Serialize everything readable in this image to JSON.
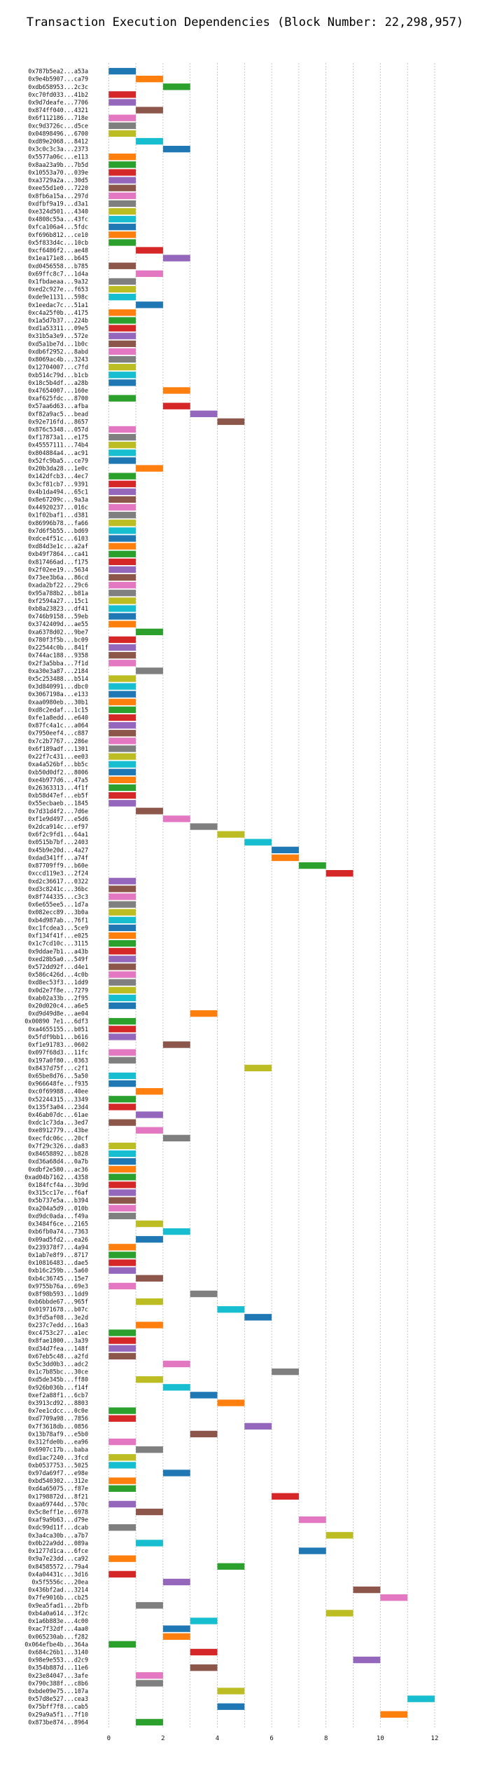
{
  "chart_data": {
    "type": "bar",
    "orientation": "horizontal",
    "title": "Transaction Execution Dependencies (Block Number: 22,298,957)",
    "xlabel": "",
    "ylabel": "",
    "xlim": [
      -0.6,
      12.8
    ],
    "xticks": [
      0,
      2,
      4,
      6,
      8,
      10,
      12
    ],
    "grid": true,
    "palette": [
      "#1f77b4",
      "#ff7f0e",
      "#2ca02c",
      "#d62728",
      "#9467bd",
      "#8c564b",
      "#e377c2",
      "#7f7f7f",
      "#bcbd22",
      "#17becf"
    ],
    "bar_width": 1,
    "transactions": [
      {
        "label": "0x787b5ea2...a53a",
        "start": 0
      },
      {
        "label": "0x9e4b5907...ca79",
        "start": 1
      },
      {
        "label": "0xdb658953...2c3c",
        "start": 2
      },
      {
        "label": "0xc70fd033...41b2",
        "start": 0
      },
      {
        "label": "0x9d7deafe...7706",
        "start": 0
      },
      {
        "label": "0x874ff040...4321",
        "start": 1
      },
      {
        "label": "0x6f112186...718e",
        "start": 0
      },
      {
        "label": "0xc9d3726c...d5ce",
        "start": 0
      },
      {
        "label": "0x04898496...6700",
        "start": 0
      },
      {
        "label": "0xd89e2068...8412",
        "start": 1
      },
      {
        "label": "0x3c0c3c3a...2373",
        "start": 2
      },
      {
        "label": "0x5577a06c...e113",
        "start": 0
      },
      {
        "label": "0x8aa23a9b...7b5d",
        "start": 0
      },
      {
        "label": "0x10553a70...039e",
        "start": 0
      },
      {
        "label": "0xa3729a2a...30d5",
        "start": 0
      },
      {
        "label": "0xee55d1e0...7220",
        "start": 0
      },
      {
        "label": "0x8fb6a15a...297d",
        "start": 0
      },
      {
        "label": "0xdfbf9a19...d3a1",
        "start": 0
      },
      {
        "label": "0xe324d501...4340",
        "start": 0
      },
      {
        "label": "0x4808c55a...43fc",
        "start": 0
      },
      {
        "label": "0xfca106a4...5fdc",
        "start": 0
      },
      {
        "label": "0xf696b812...ce10",
        "start": 0
      },
      {
        "label": "0x5f833d4c...10cb",
        "start": 0
      },
      {
        "label": "0xcf6486f2...ae48",
        "start": 1
      },
      {
        "label": "0x1ea171e8...b645",
        "start": 2
      },
      {
        "label": "0xd0456558...b785",
        "start": 0
      },
      {
        "label": "0x69ffc8c7...1d4a",
        "start": 1
      },
      {
        "label": "0x1fbdaeaa...9a32",
        "start": 0
      },
      {
        "label": "0xed2c927e...f653",
        "start": 0
      },
      {
        "label": "0xde9e1131...598c",
        "start": 0
      },
      {
        "label": "0x1eedac7c...51a1",
        "start": 1
      },
      {
        "label": "0xc4a25f0b...4175",
        "start": 0
      },
      {
        "label": "0x1a5d7b37...224b",
        "start": 0
      },
      {
        "label": "0xd1a53311...09e5",
        "start": 0
      },
      {
        "label": "0x31b5a3e9...572e",
        "start": 0
      },
      {
        "label": "0xd5a1be7d...1b0c",
        "start": 0
      },
      {
        "label": "0xdb6f2952...8abd",
        "start": 0
      },
      {
        "label": "0x8069ac4b...3243",
        "start": 0
      },
      {
        "label": "0x12704007...c7fd",
        "start": 0
      },
      {
        "label": "0xb514c79d...b1cb",
        "start": 0
      },
      {
        "label": "0x18c5b4df...a28b",
        "start": 0
      },
      {
        "label": "0x47654007...160e",
        "start": 2
      },
      {
        "label": "0xaf625fdc...8700",
        "start": 0
      },
      {
        "label": "0x57aa6d63...afba",
        "start": 2
      },
      {
        "label": "0xf82a9ac5...bead",
        "start": 3
      },
      {
        "label": "0x92e716fd...8657",
        "start": 4
      },
      {
        "label": "0x876c5348...057d",
        "start": 0
      },
      {
        "label": "0xf17873a1...e175",
        "start": 0
      },
      {
        "label": "0x45557111...74b4",
        "start": 0
      },
      {
        "label": "0x804884a4...ac91",
        "start": 0
      },
      {
        "label": "0x52fc9ba5...ce79",
        "start": 0
      },
      {
        "label": "0x20b3da28...1e0c",
        "start": 1
      },
      {
        "label": "0x142dfcb3...4ec7",
        "start": 0
      },
      {
        "label": "0x3cf81cb7...9391",
        "start": 0
      },
      {
        "label": "0x4b1da494...65c1",
        "start": 0
      },
      {
        "label": "0x8e67209c...9a3a",
        "start": 0
      },
      {
        "label": "0x44920237...016c",
        "start": 0
      },
      {
        "label": "0x1f02baf1...d381",
        "start": 0
      },
      {
        "label": "0x86996b78...fa66",
        "start": 0
      },
      {
        "label": "0x7d6f5b55...bd69",
        "start": 0
      },
      {
        "label": "0xdce4f51c...6103",
        "start": 0
      },
      {
        "label": "0xd84d3e1c...a2af",
        "start": 0
      },
      {
        "label": "0xb49f7864...ca41",
        "start": 0
      },
      {
        "label": "0x817466ad...f175",
        "start": 0
      },
      {
        "label": "0x2f02ee19...5634",
        "start": 0
      },
      {
        "label": "0x73ee3b6a...86cd",
        "start": 0
      },
      {
        "label": "0xada2bf22...29c6",
        "start": 0
      },
      {
        "label": "0x95a788b2...b81a",
        "start": 0
      },
      {
        "label": "0xf2594a27...15c1",
        "start": 0
      },
      {
        "label": "0xb8a23823...df41",
        "start": 0
      },
      {
        "label": "0x746b9158...59eb",
        "start": 0
      },
      {
        "label": "0x3742409d...ae55",
        "start": 0
      },
      {
        "label": "0xa6378d02...9be7",
        "start": 1
      },
      {
        "label": "0x780f3f5b...bc09",
        "start": 0
      },
      {
        "label": "0x22544c0b...841f",
        "start": 0
      },
      {
        "label": "0x744ac188...9358",
        "start": 0
      },
      {
        "label": "0x2f3a5bba...7f1d",
        "start": 0
      },
      {
        "label": "0xa30e3a87...2184",
        "start": 1
      },
      {
        "label": "0x5c253488...b514",
        "start": 0
      },
      {
        "label": "0x3d840991...dbc0",
        "start": 0
      },
      {
        "label": "0x3067198a...e133",
        "start": 0
      },
      {
        "label": "0xaa0980eb...30b1",
        "start": 0
      },
      {
        "label": "0xd8c2edaf...1c15",
        "start": 0
      },
      {
        "label": "0xfe1a8edd...e640",
        "start": 0
      },
      {
        "label": "0x87fc4a1c...a064",
        "start": 0
      },
      {
        "label": "0x7950eef4...c887",
        "start": 0
      },
      {
        "label": "0x7c2b7767...286e",
        "start": 0
      },
      {
        "label": "0x6f189adf...1301",
        "start": 0
      },
      {
        "label": "0x22f7c431...ee03",
        "start": 0
      },
      {
        "label": "0xa4a526bf...bb5c",
        "start": 0
      },
      {
        "label": "0xb50d0df2...8006",
        "start": 0
      },
      {
        "label": "0xe4b977d6...47a5",
        "start": 0
      },
      {
        "label": "0x26363313...4f1f",
        "start": 0
      },
      {
        "label": "0xb58d47ef...eb5f",
        "start": 0
      },
      {
        "label": "0x55ecbaeb...1845",
        "start": 0
      },
      {
        "label": "0x7d31d4f2...7d6e",
        "start": 1
      },
      {
        "label": "0xf1e9d497...e5d6",
        "start": 2
      },
      {
        "label": "0x2dca914c...ef97",
        "start": 3
      },
      {
        "label": "0x6f2c9fd1...64a1",
        "start": 4
      },
      {
        "label": "0x0515b7bf...2403",
        "start": 5
      },
      {
        "label": "0x45b9e20d...4a27",
        "start": 6
      },
      {
        "label": "0xdad341ff...a74f",
        "start": 6
      },
      {
        "label": "0x87709ff9...b60e",
        "start": 7
      },
      {
        "label": "0xccd119e3...2f24",
        "start": 8
      },
      {
        "label": "0xd2c36617...0322",
        "start": 0
      },
      {
        "label": "0xd3c8241c...36bc",
        "start": 0
      },
      {
        "label": "0x8f744335...c3c3",
        "start": 0
      },
      {
        "label": "0x6e655ee5...1d7a",
        "start": 0
      },
      {
        "label": "0x082ecc89...3b0a",
        "start": 0
      },
      {
        "label": "0xb4d987ab...76f1",
        "start": 0
      },
      {
        "label": "0xc1fcdea3...5ce9",
        "start": 0
      },
      {
        "label": "0xf134f41f...e025",
        "start": 0
      },
      {
        "label": "0x1c7cd10c...3115",
        "start": 0
      },
      {
        "label": "0x9ddae7b1...a43b",
        "start": 0
      },
      {
        "label": "0xed28b5a0...549f",
        "start": 0
      },
      {
        "label": "0x572dd92f...d4e1",
        "start": 0
      },
      {
        "label": "0x586c426d...4c0b",
        "start": 0
      },
      {
        "label": "0xd8ec53f3...1dd9",
        "start": 0
      },
      {
        "label": "0x0d2e7f8e...7279",
        "start": 0
      },
      {
        "label": "0xab02a33b...2f95",
        "start": 0
      },
      {
        "label": "0x20d020c4...a6e5",
        "start": 0
      },
      {
        "label": "0xd9d49d8e...ae04",
        "start": 3
      },
      {
        "label": "0x00890 7e1...6df3",
        "start": 0
      },
      {
        "label": "0xa4655155...b051",
        "start": 0
      },
      {
        "label": "0x5fdf9bb1...b616",
        "start": 0
      },
      {
        "label": "0xf1e91783...0602",
        "start": 2
      },
      {
        "label": "0x097f68d3...11fc",
        "start": 0
      },
      {
        "label": "0x197a0f80...0363",
        "start": 0
      },
      {
        "label": "0x8437d75f...c2f1",
        "start": 5
      },
      {
        "label": "0x65be8d76...5a50",
        "start": 0
      },
      {
        "label": "0x966648fe...f935",
        "start": 0
      },
      {
        "label": "0xc0f69988...40ee",
        "start": 1
      },
      {
        "label": "0x52244315...3349",
        "start": 0
      },
      {
        "label": "0x135f3a04...23d4",
        "start": 0
      },
      {
        "label": "0x46ab07dc...61ae",
        "start": 1
      },
      {
        "label": "0xdc1c73da...3ed7",
        "start": 0
      },
      {
        "label": "0xe8912779...43be",
        "start": 1
      },
      {
        "label": "0xecfdc06c...20cf",
        "start": 2
      },
      {
        "label": "0x7f29c326...da83",
        "start": 0
      },
      {
        "label": "0x84658892...b828",
        "start": 0
      },
      {
        "label": "0xd36a68d4...0a7b",
        "start": 0
      },
      {
        "label": "0xdbf2e580...ac36",
        "start": 0
      },
      {
        "label": "0xad04b7162...4358",
        "start": 0
      },
      {
        "label": "0x184fcf4a...3b9d",
        "start": 0
      },
      {
        "label": "0x315cc17e...f6af",
        "start": 0
      },
      {
        "label": "0x5b737e5a...b394",
        "start": 0
      },
      {
        "label": "0xa204a5d9...010b",
        "start": 0
      },
      {
        "label": "0xd9dc0ada...f49a",
        "start": 0
      },
      {
        "label": "0x3484f6ce...2165",
        "start": 1
      },
      {
        "label": "0xb6fb0a74...7363",
        "start": 2
      },
      {
        "label": "0x09ad5fd2...ea26",
        "start": 1
      },
      {
        "label": "0x239378f7...4a94",
        "start": 0
      },
      {
        "label": "0x1ab7e8f9...8717",
        "start": 0
      },
      {
        "label": "0x10816483...dae5",
        "start": 0
      },
      {
        "label": "0xb16c259b...5a60",
        "start": 0
      },
      {
        "label": "0xb4c36745...15e7",
        "start": 1
      },
      {
        "label": "0x9755b76a...69e3",
        "start": 0
      },
      {
        "label": "0x8f98b593...1dd9",
        "start": 3
      },
      {
        "label": "0xb6bbde67...965f",
        "start": 1
      },
      {
        "label": "0x01971678...b07c",
        "start": 4
      },
      {
        "label": "0x3fd5af08...3e2d",
        "start": 5
      },
      {
        "label": "0x237c7edd...16a3",
        "start": 1
      },
      {
        "label": "0xc4753c27...a1ec",
        "start": 0
      },
      {
        "label": "0x8fae1800...3a39",
        "start": 0
      },
      {
        "label": "0xd34d7fea...148f",
        "start": 0
      },
      {
        "label": "0x67eb5c48...a2fd",
        "start": 0
      },
      {
        "label": "0x5c3dd0b3...adc2",
        "start": 2
      },
      {
        "label": "0x1c7b85bc...30ce",
        "start": 6
      },
      {
        "label": "0xd5de345b...ff80",
        "start": 1
      },
      {
        "label": "0x926b036b...f14f",
        "start": 2
      },
      {
        "label": "0xef2a88f1...6cb7",
        "start": 3
      },
      {
        "label": "0x3913cd92...8803",
        "start": 4
      },
      {
        "label": "0x7ee1cdcc...0c0e",
        "start": 0
      },
      {
        "label": "0xd7709a98...7856",
        "start": 0
      },
      {
        "label": "0x7f3618db...0856",
        "start": 5
      },
      {
        "label": "0x13b78af9...e5b0",
        "start": 3
      },
      {
        "label": "0x312fde0b...ea96",
        "start": 0
      },
      {
        "label": "0x6907c17b...baba",
        "start": 1
      },
      {
        "label": "0xd1ac7240...3fcd",
        "start": 0
      },
      {
        "label": "0xb0537753...5025",
        "start": 0
      },
      {
        "label": "0x97da69f7...e98e",
        "start": 2
      },
      {
        "label": "0xbd540302...312e",
        "start": 0
      },
      {
        "label": "0xd4a65075...f87e",
        "start": 0
      },
      {
        "label": "0x1798872d...8f21",
        "start": 6
      },
      {
        "label": "0xaa69744d...570c",
        "start": 0
      },
      {
        "label": "0x5c8eff1e...6978",
        "start": 1
      },
      {
        "label": "0xaf9a9b63...d79e",
        "start": 7
      },
      {
        "label": "0xdc99d11f...dcab",
        "start": 0
      },
      {
        "label": "0x3a4ca30b...a7b7",
        "start": 8
      },
      {
        "label": "0x0b22a9dd...089a",
        "start": 1
      },
      {
        "label": "0x1277d1ca...6fce",
        "start": 7
      },
      {
        "label": "0x9a7e23dd...ca92",
        "start": 0
      },
      {
        "label": "0x84585572...79a4",
        "start": 4
      },
      {
        "label": "0x4a04431c...3d16",
        "start": 0
      },
      {
        "label": "0x5f5556c...20ea",
        "start": 2
      },
      {
        "label": "0x436bf2ad...3214",
        "start": 9
      },
      {
        "label": "0x7fe9016b...cb25",
        "start": 10
      },
      {
        "label": "0x9ea5fad1...2bfb",
        "start": 1
      },
      {
        "label": "0xb4a0a614...3f2c",
        "start": 8
      },
      {
        "label": "0x1a6b883e...4c00",
        "start": 3
      },
      {
        "label": "0xac7f32df...4aa0",
        "start": 2
      },
      {
        "label": "0x065230ab...f282",
        "start": 2
      },
      {
        "label": "0x064efbe4b...364a",
        "start": 0
      },
      {
        "label": "0x684c26b1...3140",
        "start": 3
      },
      {
        "label": "0x98e9e553...d2c9",
        "start": 9
      },
      {
        "label": "0x354b887d...11e6",
        "start": 3
      },
      {
        "label": "0x23e84047...3afe",
        "start": 1
      },
      {
        "label": "0x790c388f...c8b6",
        "start": 1
      },
      {
        "label": "0xbde09e75...107a",
        "start": 4
      },
      {
        "label": "0x57d8e527...cea3",
        "start": 11
      },
      {
        "label": "0x75bff7f8...cab5",
        "start": 4
      },
      {
        "label": "0x29a9a5f1...7f10",
        "start": 10
      },
      {
        "label": "0x873be874...8964",
        "start": 1
      }
    ]
  },
  "header": {
    "title": "Transaction Execution Dependencies (Block Number: 22,298,957)"
  }
}
